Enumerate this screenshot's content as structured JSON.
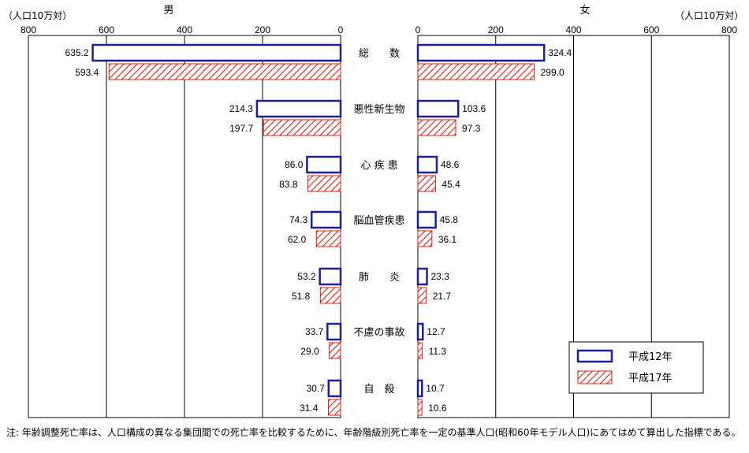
{
  "chart_data": {
    "type": "bar",
    "orientation": "horizontal-butterfly",
    "left_panel_label": "男",
    "right_panel_label": "女",
    "unit_label": "（人口10万対）",
    "x_ticks_left": [
      "800",
      "600",
      "400",
      "200",
      "0"
    ],
    "x_ticks_right": [
      "0",
      "200",
      "400",
      "600",
      "800"
    ],
    "xlim": [
      0,
      800
    ],
    "grid": true,
    "categories": [
      "総　　数",
      "悪性新生物",
      "心 疾 患",
      "脳血管疾患",
      "肺　　炎",
      "不慮の事故",
      "自　殺"
    ],
    "series": [
      {
        "name": "平成12年",
        "male": [
          635.2,
          214.3,
          86.0,
          74.3,
          53.2,
          33.7,
          30.7
        ],
        "female": [
          324.4,
          103.6,
          48.6,
          45.8,
          23.3,
          12.7,
          10.7
        ],
        "male_labels": [
          "635.2",
          "214.3",
          "86.0",
          "74.3",
          "53.2",
          "33.7",
          "30.7"
        ],
        "female_labels": [
          "324.4",
          "103.6",
          "48.6",
          "45.8",
          "23.3",
          "12.7",
          "10.7"
        ]
      },
      {
        "name": "平成17年",
        "male": [
          593.4,
          197.7,
          83.8,
          62.0,
          51.8,
          29.0,
          31.4
        ],
        "female": [
          299.0,
          97.3,
          45.4,
          36.1,
          21.7,
          11.3,
          10.6
        ],
        "male_labels": [
          "593.4",
          "197.7",
          "83.8",
          "62.0",
          "51.8",
          "29.0",
          "31.4"
        ],
        "female_labels": [
          "299.0",
          "97.3",
          "45.4",
          "36.1",
          "21.7",
          "11.3",
          "10.6"
        ]
      }
    ],
    "legend_position": "bottom-right",
    "colors": {
      "series1_border": "#1f1f8f",
      "series2_hatch": "#d0201b",
      "grid": "#000000"
    }
  },
  "note": "注: 年齢調整死亡率は、人口構成の異なる集団間での死亡率を比較するために、年齢階級別死亡率を一定の基準人口(昭和60年モデル人口)にあてはめて算出した指標である。"
}
